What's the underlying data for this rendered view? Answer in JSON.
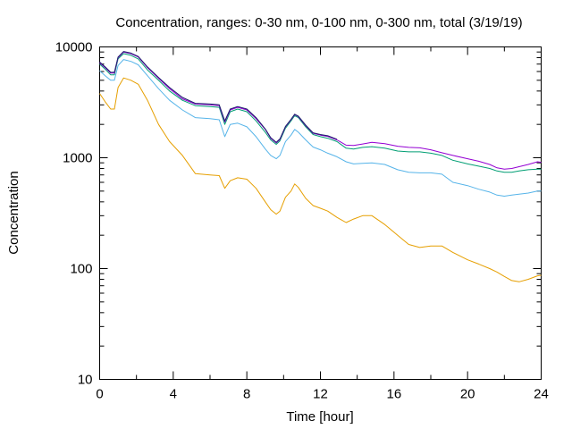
{
  "chart_data": {
    "type": "line",
    "title": "Concentration, ranges: 0-30 nm, 0-100 nm, 0-300 nm, total (3/19/19)",
    "xlabel": "Time [hour]",
    "ylabel": "Concentration",
    "xlim": [
      0,
      24
    ],
    "ylim": [
      10,
      10000
    ],
    "yscale": "log",
    "grid": false,
    "legend": "none",
    "xticks": [
      "0",
      "4",
      "8",
      "12",
      "16",
      "20",
      "24"
    ],
    "xtick_values": [
      0,
      4,
      8,
      12,
      16,
      20,
      24
    ],
    "yticks": [
      "10",
      "100",
      "1000",
      "10000"
    ],
    "ytick_values": [
      10,
      100,
      1000,
      10000
    ],
    "minor_xtick_values": [
      2,
      6,
      10,
      14,
      18,
      22
    ],
    "minor_ytick_values": [
      20,
      30,
      40,
      50,
      60,
      70,
      80,
      90,
      200,
      300,
      400,
      500,
      600,
      700,
      800,
      900,
      2000,
      3000,
      4000,
      5000,
      6000,
      7000,
      8000,
      9000
    ],
    "series": [
      {
        "color": "#e69f00",
        "x": [
          0,
          0.3,
          0.6,
          0.8,
          1,
          1.3,
          1.7,
          2.1,
          2.6,
          3.2,
          3.8,
          4.5,
          5.2,
          6,
          6.5,
          6.8,
          7.1,
          7.5,
          8,
          8.5,
          9,
          9.3,
          9.6,
          9.8,
          10.1,
          10.4,
          10.6,
          10.8,
          11.2,
          11.6,
          12,
          12.4,
          12.9,
          13.4,
          13.8,
          14.3,
          14.8,
          15.5,
          16.2,
          16.8,
          17.4,
          18,
          18.6,
          19.2,
          20,
          20.6,
          21.2,
          21.6,
          22,
          22.4,
          22.8,
          23.3,
          23.8,
          24
        ],
        "values": [
          3800,
          3200,
          2750,
          2750,
          4300,
          5250,
          5000,
          4600,
          3300,
          2000,
          1400,
          1050,
          720,
          700,
          690,
          530,
          620,
          660,
          640,
          530,
          400,
          340,
          310,
          330,
          440,
          500,
          580,
          540,
          430,
          370,
          350,
          330,
          290,
          260,
          280,
          300,
          300,
          250,
          200,
          165,
          155,
          160,
          160,
          140,
          120,
          110,
          100,
          93,
          85,
          78,
          76,
          80,
          86,
          87
        ]
      },
      {
        "color": "#56b4e9",
        "x": [
          0,
          0.3,
          0.6,
          0.8,
          1,
          1.3,
          1.7,
          2.1,
          2.6,
          3.2,
          3.8,
          4.5,
          5.2,
          6,
          6.5,
          6.8,
          7.1,
          7.5,
          8,
          8.5,
          9,
          9.3,
          9.6,
          9.8,
          10.1,
          10.4,
          10.6,
          10.8,
          11.2,
          11.6,
          12,
          12.4,
          12.9,
          13.4,
          13.8,
          14.3,
          14.8,
          15.5,
          16.2,
          16.8,
          17.4,
          18,
          18.6,
          19.2,
          20,
          20.6,
          21.2,
          21.6,
          22,
          22.4,
          22.8,
          23.3,
          23.8,
          24
        ],
        "values": [
          6100,
          5500,
          5000,
          5000,
          6800,
          7700,
          7400,
          6900,
          5500,
          4200,
          3300,
          2700,
          2300,
          2250,
          2200,
          1550,
          2000,
          2050,
          1900,
          1550,
          1200,
          1050,
          980,
          1050,
          1400,
          1600,
          1800,
          1700,
          1450,
          1250,
          1180,
          1100,
          1020,
          920,
          880,
          890,
          900,
          870,
          780,
          740,
          730,
          730,
          710,
          600,
          560,
          520,
          490,
          460,
          450,
          460,
          470,
          480,
          500,
          500
        ]
      },
      {
        "color": "#009e73",
        "x": [
          0,
          0.3,
          0.6,
          0.8,
          1,
          1.3,
          1.7,
          2.1,
          2.6,
          3.2,
          3.8,
          4.5,
          5.2,
          6,
          6.5,
          6.8,
          7.1,
          7.5,
          8,
          8.5,
          9,
          9.3,
          9.6,
          9.8,
          10.1,
          10.4,
          10.6,
          10.8,
          11.2,
          11.6,
          12,
          12.4,
          12.9,
          13.4,
          13.8,
          14.3,
          14.8,
          15.5,
          16.2,
          16.8,
          17.4,
          18,
          18.6,
          19.2,
          20,
          20.6,
          21.2,
          21.6,
          22,
          22.4,
          22.8,
          23.3,
          23.8,
          24
        ],
        "values": [
          7000,
          6300,
          5600,
          5600,
          7800,
          8700,
          8400,
          7800,
          6200,
          5000,
          4000,
          3300,
          2950,
          2900,
          2850,
          2000,
          2600,
          2750,
          2600,
          2150,
          1700,
          1450,
          1320,
          1420,
          1850,
          2150,
          2400,
          2300,
          1900,
          1620,
          1550,
          1500,
          1400,
          1220,
          1200,
          1240,
          1260,
          1220,
          1150,
          1130,
          1130,
          1100,
          1050,
          950,
          880,
          840,
          800,
          760,
          740,
          740,
          760,
          780,
          790,
          790
        ]
      },
      {
        "color": "#9400d3",
        "x": [
          0,
          0.3,
          0.6,
          0.8,
          1,
          1.3,
          1.7,
          2.1,
          2.6,
          3.2,
          3.8,
          4.5,
          5.2,
          6,
          6.5,
          6.8,
          7.1,
          7.5,
          8,
          8.5,
          9,
          9.3,
          9.6,
          9.8,
          10.1,
          10.4,
          10.6,
          10.8,
          11.2,
          11.6,
          12,
          12.4,
          12.9,
          13.4,
          13.8,
          14.3,
          14.8,
          15.5,
          16.2,
          16.8,
          17.4,
          18,
          18.6,
          19.2,
          20,
          20.6,
          21.2,
          21.6,
          22,
          22.4,
          22.8,
          23.3,
          23.8,
          24
        ],
        "values": [
          7200,
          6500,
          5800,
          5800,
          8000,
          9000,
          8700,
          8100,
          6500,
          5200,
          4200,
          3400,
          3050,
          3000,
          2950,
          2100,
          2700,
          2850,
          2700,
          2250,
          1800,
          1500,
          1360,
          1460,
          1900,
          2200,
          2450,
          2350,
          1950,
          1660,
          1600,
          1560,
          1450,
          1300,
          1290,
          1330,
          1380,
          1340,
          1270,
          1240,
          1230,
          1180,
          1110,
          1050,
          980,
          930,
          870,
          810,
          790,
          800,
          830,
          870,
          920,
          910
        ]
      },
      {
        "color": "#1b1f6b",
        "x": [
          0,
          0.3,
          0.6,
          0.8,
          1,
          1.3,
          1.7,
          2.1,
          2.6,
          3.2,
          3.8,
          4.5,
          5.2,
          6,
          6.5,
          6.8,
          7.1,
          7.5,
          8,
          8.5,
          9,
          9.3,
          9.6,
          9.8,
          10.1,
          10.4,
          10.6,
          10.8,
          11.2,
          11.6,
          12,
          12.4,
          12.9
        ],
        "values": [
          7300,
          6600,
          5900,
          5900,
          8100,
          9100,
          8800,
          8200,
          6600,
          5300,
          4300,
          3500,
          3100,
          3050,
          3000,
          2150,
          2750,
          2900,
          2750,
          2300,
          1820,
          1520,
          1380,
          1480,
          1920,
          2220,
          2470,
          2370,
          1970,
          1680,
          1620,
          1580,
          1470
        ]
      }
    ]
  }
}
